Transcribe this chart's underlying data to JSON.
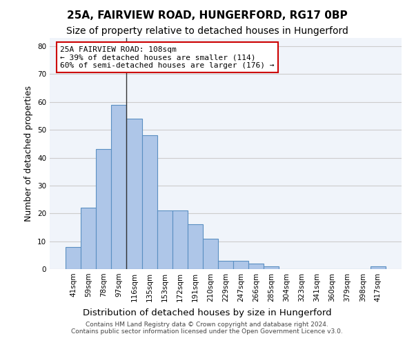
{
  "title": "25A, FAIRVIEW ROAD, HUNGERFORD, RG17 0BP",
  "subtitle": "Size of property relative to detached houses in Hungerford",
  "xlabel_bottom": "Distribution of detached houses by size in Hungerford",
  "ylabel": "Number of detached properties",
  "categories": [
    "41sqm",
    "59sqm",
    "78sqm",
    "97sqm",
    "116sqm",
    "135sqm",
    "153sqm",
    "172sqm",
    "191sqm",
    "210sqm",
    "229sqm",
    "247sqm",
    "266sqm",
    "285sqm",
    "304sqm",
    "323sqm",
    "341sqm",
    "360sqm",
    "379sqm",
    "398sqm",
    "417sqm"
  ],
  "values": [
    8,
    22,
    43,
    59,
    54,
    48,
    21,
    21,
    16,
    11,
    3,
    3,
    2,
    1,
    0,
    0,
    0,
    0,
    0,
    0,
    1
  ],
  "bar_color": "#aec6e8",
  "bar_edge_color": "#5a8fc2",
  "vline_x": 3.5,
  "vline_color": "#333333",
  "annotation_line1": "25A FAIRVIEW ROAD: 108sqm",
  "annotation_line2": "← 39% of detached houses are smaller (114)",
  "annotation_line3": "60% of semi-detached houses are larger (176) →",
  "annotation_box_color": "#ffffff",
  "annotation_box_edge_color": "#cc0000",
  "ylim": [
    0,
    83
  ],
  "yticks": [
    0,
    10,
    20,
    30,
    40,
    50,
    60,
    70,
    80
  ],
  "grid_color": "#cccccc",
  "background_color": "#f0f4fa",
  "footer_text": "Contains HM Land Registry data © Crown copyright and database right 2024.\nContains public sector information licensed under the Open Government Licence v3.0.",
  "title_fontsize": 11,
  "subtitle_fontsize": 10,
  "tick_fontsize": 7.5,
  "ylabel_fontsize": 9,
  "annotation_fontsize": 8
}
